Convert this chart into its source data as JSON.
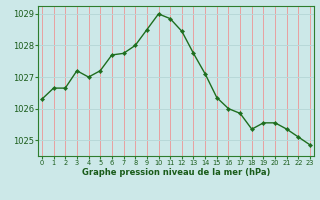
{
  "x": [
    0,
    1,
    2,
    3,
    4,
    5,
    6,
    7,
    8,
    9,
    10,
    11,
    12,
    13,
    14,
    15,
    16,
    17,
    18,
    19,
    20,
    21,
    22,
    23
  ],
  "y": [
    1026.3,
    1026.65,
    1026.65,
    1027.2,
    1027.0,
    1027.2,
    1027.7,
    1027.75,
    1028.0,
    1028.5,
    1029.0,
    1028.85,
    1028.45,
    1027.75,
    1027.1,
    1026.35,
    1026.0,
    1025.85,
    1025.35,
    1025.55,
    1025.55,
    1025.35,
    1025.1,
    1024.85
  ],
  "line_color": "#1e6e1e",
  "marker_color": "#1e6e1e",
  "bg_color": "#cce8e8",
  "vgrid_color": "#e8a0a0",
  "hgrid_color": "#b8d8d8",
  "border_color": "#2e7d2e",
  "xlabel": "Graphe pression niveau de la mer (hPa)",
  "xlabel_color": "#1a5c1a",
  "tick_color": "#1a5c1a",
  "yticks": [
    1025,
    1026,
    1027,
    1028,
    1029
  ],
  "ylim": [
    1024.5,
    1029.25
  ],
  "xlim": [
    -0.3,
    23.3
  ],
  "xtick_labels": [
    "0",
    "1",
    "2",
    "3",
    "4",
    "5",
    "6",
    "7",
    "8",
    "9",
    "10",
    "11",
    "12",
    "13",
    "14",
    "15",
    "16",
    "17",
    "18",
    "19",
    "20",
    "21",
    "22",
    "23"
  ]
}
